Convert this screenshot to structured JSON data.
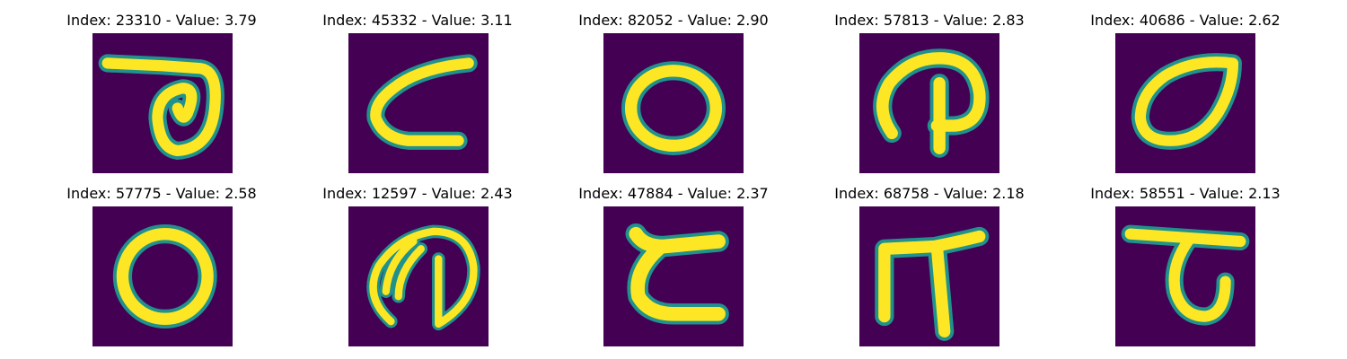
{
  "colors": {
    "background": "#440154",
    "stroke_edge": "#21918c",
    "stroke_mid": "#5ec962",
    "stroke_core": "#fde725"
  },
  "panels": [
    {
      "title": "Index: 23310 - Value: 3.79",
      "glyph": "hook-loop"
    },
    {
      "title": "Index: 45332 - Value: 3.11",
      "glyph": "open-c"
    },
    {
      "title": "Index: 82052 - Value: 2.90",
      "glyph": "oval"
    },
    {
      "title": "Index: 57813 - Value: 2.83",
      "glyph": "arch-loop"
    },
    {
      "title": "Index: 40686 - Value: 2.62",
      "glyph": "leaf-oval"
    },
    {
      "title": "Index: 57775 - Value: 2.58",
      "glyph": "round-o"
    },
    {
      "title": "Index: 12597 - Value: 2.43",
      "glyph": "split-d"
    },
    {
      "title": "Index: 47884 - Value: 2.37",
      "glyph": "z-curve"
    },
    {
      "title": "Index: 68758 - Value: 2.18",
      "glyph": "pi"
    },
    {
      "title": "Index: 58551 - Value: 2.13",
      "glyph": "hook-tail"
    }
  ]
}
